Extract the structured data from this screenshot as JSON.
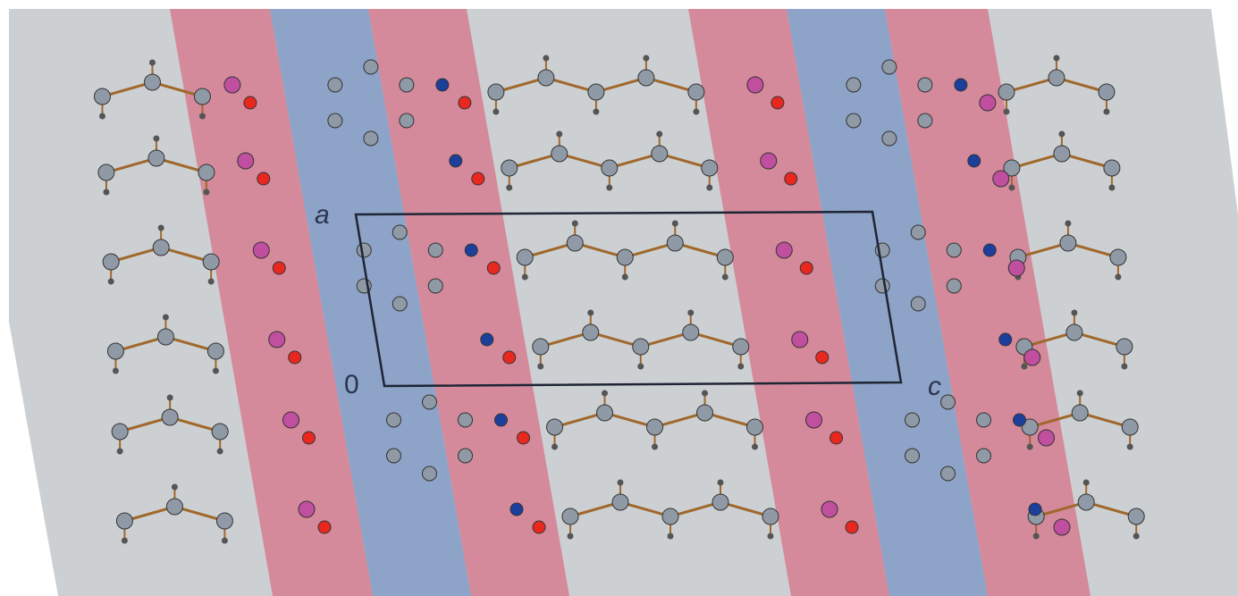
{
  "labels": {
    "a": "a",
    "origin": "0",
    "c": "c"
  }
}
